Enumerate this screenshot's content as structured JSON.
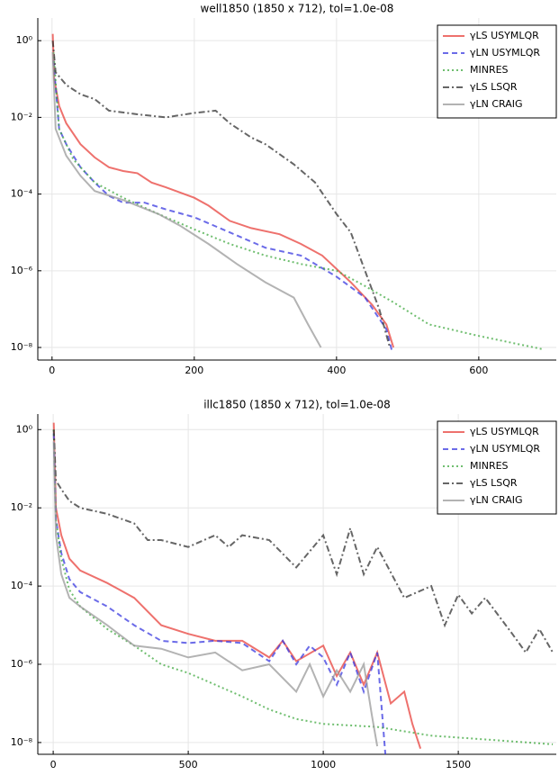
{
  "chart_data": [
    {
      "type": "line",
      "title": "well1850 (1850 x 712), tol=1.0e-08",
      "yscale": "log",
      "grid": true,
      "legend": "top-right",
      "xlim": [
        -20,
        709
      ],
      "xticks": [
        0,
        200,
        400,
        600
      ],
      "ylim": [
        3.9,
        4.7e-09
      ],
      "yticks": [
        {
          "value": 1,
          "label": "10⁰"
        },
        {
          "value": 0.01,
          "label": "10⁻²"
        },
        {
          "value": 0.0001,
          "label": "10⁻⁴"
        },
        {
          "value": 1e-06,
          "label": "10⁻⁶"
        },
        {
          "value": 1e-08,
          "label": "10⁻⁸"
        }
      ],
      "series": [
        {
          "name": "γLS USYMLQR",
          "color": "#e8413c",
          "style": "solid",
          "x": [
            1,
            3,
            10,
            20,
            40,
            60,
            80,
            100,
            120,
            140,
            160,
            200,
            220,
            250,
            280,
            320,
            350,
            380,
            420,
            450,
            470,
            480
          ],
          "values": [
            1.5,
            0.1,
            0.02,
            0.007,
            0.002,
            0.0009,
            0.0005,
            0.0004,
            0.00035,
            0.0002,
            0.00015,
            8e-05,
            5e-05,
            2e-05,
            1.3e-05,
            9e-06,
            5e-06,
            2.5e-06,
            5e-07,
            1.3e-07,
            4e-08,
            1e-08
          ]
        },
        {
          "name": "γLN USYMLQR",
          "color": "#3a3ae0",
          "style": "dashed",
          "x": [
            2,
            10,
            20,
            40,
            60,
            80,
            100,
            130,
            160,
            200,
            250,
            300,
            350,
            400,
            440,
            470,
            478
          ],
          "values": [
            0.3,
            0.005,
            0.002,
            0.0005,
            0.0002,
            9e-05,
            6e-05,
            6e-05,
            4e-05,
            2.5e-05,
            1e-05,
            4e-06,
            2.5e-06,
            7e-07,
            2e-07,
            3e-08,
            8e-09
          ]
        },
        {
          "name": "MINRES",
          "color": "#3fa83f",
          "style": "dotted",
          "x": [
            2,
            10,
            30,
            60,
            100,
            150,
            200,
            250,
            300,
            350,
            400,
            440,
            480,
            530,
            600,
            690
          ],
          "values": [
            0.5,
            0.005,
            0.0008,
            0.0002,
            8e-05,
            3e-05,
            1.2e-05,
            5e-06,
            2.5e-06,
            1.5e-06,
            1e-06,
            4e-07,
            1.5e-07,
            4e-08,
            2e-08,
            9e-09
          ]
        },
        {
          "name": "γLS LSQR",
          "color": "#333333",
          "style": "dashdot",
          "x": [
            1,
            5,
            20,
            40,
            60,
            80,
            120,
            160,
            200,
            230,
            250,
            280,
            300,
            340,
            370,
            400,
            420,
            440,
            460,
            475
          ],
          "values": [
            1,
            0.15,
            0.07,
            0.04,
            0.03,
            0.015,
            0.012,
            0.01,
            0.013,
            0.015,
            0.007,
            0.003,
            0.002,
            0.0006,
            0.0002,
            3e-05,
            1e-05,
            1e-06,
            1e-07,
            1e-08
          ]
        },
        {
          "name": "γLN CRAIG",
          "color": "#999999",
          "style": "solid",
          "x": [
            1,
            5,
            20,
            40,
            60,
            100,
            150,
            180,
            220,
            260,
            300,
            340,
            360,
            378
          ],
          "values": [
            0.5,
            0.005,
            0.001,
            0.0003,
            0.00012,
            7e-05,
            3e-05,
            1.5e-05,
            5e-06,
            1.5e-06,
            5e-07,
            2e-07,
            4e-08,
            1e-08
          ]
        }
      ]
    },
    {
      "type": "line",
      "title": "illc1850 (1850 x 712), tol=1.0e-08",
      "yscale": "log",
      "grid": true,
      "legend": "top-right",
      "xlim": [
        -57,
        1863
      ],
      "xticks": [
        0,
        500,
        1000,
        1500
      ],
      "ylim": [
        2.5,
        5e-09
      ],
      "yticks": [
        {
          "value": 1,
          "label": "10⁰"
        },
        {
          "value": 0.01,
          "label": "10⁻²"
        },
        {
          "value": 0.0001,
          "label": "10⁻⁴"
        },
        {
          "value": 1e-06,
          "label": "10⁻⁶"
        },
        {
          "value": 1e-08,
          "label": "10⁻⁸"
        }
      ],
      "series": [
        {
          "name": "γLS USYMLQR",
          "color": "#e8413c",
          "style": "solid",
          "x": [
            2,
            10,
            30,
            60,
            100,
            200,
            300,
            400,
            500,
            600,
            700,
            800,
            850,
            900,
            1000,
            1050,
            1100,
            1150,
            1200,
            1250,
            1300,
            1330,
            1360
          ],
          "values": [
            1.5,
            0.01,
            0.002,
            0.0005,
            0.00025,
            0.00012,
            5e-05,
            1e-05,
            6e-06,
            4e-06,
            4e-06,
            1.5e-06,
            4e-06,
            1.2e-06,
            3e-06,
            5e-07,
            2e-06,
            3e-07,
            2e-06,
            1e-07,
            2e-07,
            3e-08,
            7e-09
          ]
        },
        {
          "name": "γLN USYMLQR",
          "color": "#3a3ae0",
          "style": "dashed",
          "x": [
            2,
            10,
            30,
            60,
            100,
            200,
            300,
            400,
            500,
            600,
            700,
            800,
            850,
            900,
            950,
            1000,
            1050,
            1100,
            1150,
            1200,
            1230
          ],
          "values": [
            0.8,
            0.005,
            0.0007,
            0.00015,
            7e-05,
            3e-05,
            1e-05,
            4e-06,
            3.5e-06,
            4e-06,
            3.5e-06,
            1.2e-06,
            4e-06,
            1e-06,
            3e-06,
            1.5e-06,
            3e-07,
            2e-06,
            2e-07,
            2e-06,
            5e-09
          ]
        },
        {
          "name": "MINRES",
          "color": "#3fa83f",
          "style": "dotted",
          "x": [
            2,
            10,
            30,
            60,
            100,
            200,
            300,
            400,
            500,
            600,
            700,
            800,
            900,
            1000,
            1200,
            1400,
            1600,
            1850
          ],
          "values": [
            1,
            0.005,
            0.0005,
            8e-05,
            3e-05,
            8e-06,
            3e-06,
            1e-06,
            6e-07,
            3e-07,
            1.5e-07,
            7e-08,
            4e-08,
            3e-08,
            2.5e-08,
            1.5e-08,
            1.2e-08,
            9e-09
          ]
        },
        {
          "name": "γLS LSQR",
          "color": "#333333",
          "style": "dashdot",
          "x": [
            2,
            10,
            30,
            60,
            100,
            200,
            300,
            350,
            400,
            500,
            600,
            650,
            700,
            800,
            900,
            1000,
            1050,
            1100,
            1150,
            1200,
            1300,
            1400,
            1450,
            1500,
            1550,
            1600,
            1700,
            1750,
            1800,
            1850
          ],
          "values": [
            1,
            0.05,
            0.03,
            0.015,
            0.01,
            0.007,
            0.004,
            0.0015,
            0.0015,
            0.001,
            0.002,
            0.001,
            0.002,
            0.0015,
            0.0003,
            0.002,
            0.0002,
            0.003,
            0.0002,
            0.001,
            5e-05,
            0.0001,
            1e-05,
            6e-05,
            2e-05,
            5e-05,
            6e-06,
            2e-06,
            8e-06,
            2e-06
          ]
        },
        {
          "name": "γLN CRAIG",
          "color": "#999999",
          "style": "solid",
          "x": [
            2,
            10,
            30,
            60,
            100,
            200,
            300,
            400,
            500,
            600,
            700,
            800,
            900,
            950,
            1000,
            1050,
            1100,
            1150,
            1180,
            1200
          ],
          "values": [
            0.5,
            0.002,
            0.0002,
            5e-05,
            3e-05,
            1e-05,
            3e-06,
            2.5e-06,
            1.5e-06,
            2e-06,
            7e-07,
            1e-06,
            2e-07,
            1e-06,
            1.5e-07,
            7e-07,
            2e-07,
            1e-06,
            5e-08,
            8e-09
          ]
        }
      ]
    }
  ]
}
